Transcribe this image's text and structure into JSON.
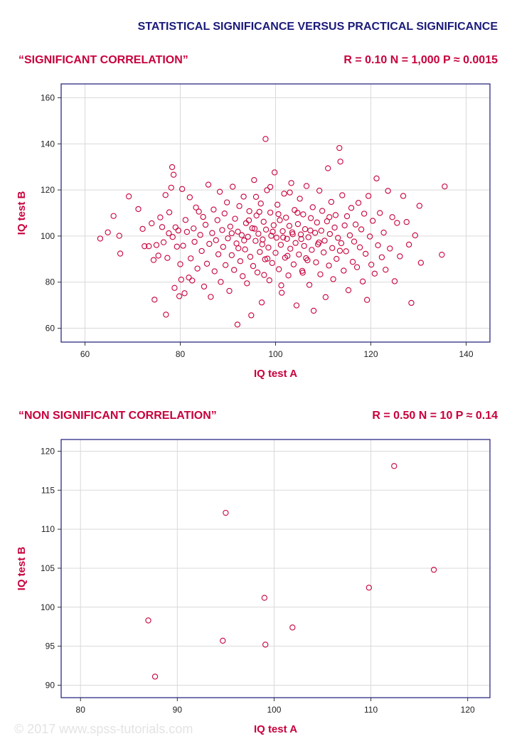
{
  "header": {
    "title": "STATISTICAL SIGNIFICANCE VERSUS PRACTICAL SIGNIFICANCE"
  },
  "watermark": "© 2017 www.spss-tutorials.com",
  "colors": {
    "title": "#1a1a7a",
    "accent": "#c8003c",
    "frame": "#1a1a7a",
    "grid": "#d9d9d9",
    "marker": "#c8003c"
  },
  "panels": [
    {
      "label": "“SIGNIFICANT CORRELATION”",
      "stats": "R = 0.10 N = 1,000 P ≈ 0.0015"
    },
    {
      "label": "“NON SIGNIFICANT CORRELATION”",
      "stats": "R = 0.50 N = 10 P ≈ 0.14"
    }
  ],
  "chart_data": [
    {
      "type": "scatter",
      "xlabel": "IQ test A",
      "ylabel": "IQ test B",
      "xlim": [
        55,
        145
      ],
      "ylim": [
        54,
        166
      ],
      "xticks": [
        60,
        80,
        100,
        120,
        140
      ],
      "yticks": [
        60,
        80,
        100,
        120,
        140,
        160
      ],
      "grid": true,
      "n": 1000,
      "points_note": "representative subset of the 1,000 plotted points",
      "points": [
        [
          63.2,
          98.9
        ],
        [
          64.8,
          101.6
        ],
        [
          66.0,
          108.7
        ],
        [
          67.2,
          100.1
        ],
        [
          67.4,
          92.4
        ],
        [
          69.2,
          117.2
        ],
        [
          71.2,
          111.7
        ],
        [
          72.1,
          103.1
        ],
        [
          72.5,
          95.6
        ],
        [
          73.4,
          95.6
        ],
        [
          74.0,
          105.5
        ],
        [
          74.4,
          89.6
        ],
        [
          74.6,
          72.4
        ],
        [
          75.0,
          96.1
        ],
        [
          75.4,
          91.5
        ],
        [
          75.8,
          108.1
        ],
        [
          76.2,
          103.9
        ],
        [
          76.5,
          97.3
        ],
        [
          76.9,
          117.8
        ],
        [
          77.0,
          65.9
        ],
        [
          77.3,
          90.5
        ],
        [
          77.6,
          101.2
        ],
        [
          77.7,
          110.3
        ],
        [
          78.1,
          121.0
        ],
        [
          78.3,
          129.9
        ],
        [
          78.4,
          99.6
        ],
        [
          78.6,
          126.6
        ],
        [
          78.8,
          77.5
        ],
        [
          79.0,
          103.8
        ],
        [
          79.3,
          95.4
        ],
        [
          79.6,
          102.4
        ],
        [
          79.8,
          73.9
        ],
        [
          80.0,
          87.8
        ],
        [
          80.2,
          81.1
        ],
        [
          80.4,
          120.4
        ],
        [
          80.6,
          95.8
        ],
        [
          80.9,
          75.2
        ],
        [
          81.1,
          107.0
        ],
        [
          81.4,
          101.8
        ],
        [
          81.8,
          82.0
        ],
        [
          82.0,
          116.8
        ],
        [
          82.2,
          90.3
        ],
        [
          82.5,
          80.7
        ],
        [
          82.8,
          103.3
        ],
        [
          83.0,
          97.5
        ],
        [
          83.3,
          112.4
        ],
        [
          83.6,
          85.9
        ],
        [
          83.9,
          110.6
        ],
        [
          84.2,
          100.5
        ],
        [
          84.5,
          93.5
        ],
        [
          84.8,
          108.3
        ],
        [
          85.0,
          78.1
        ],
        [
          85.3,
          104.9
        ],
        [
          85.6,
          88.0
        ],
        [
          85.9,
          122.3
        ],
        [
          86.1,
          96.6
        ],
        [
          86.4,
          73.6
        ],
        [
          86.7,
          101.3
        ],
        [
          87.0,
          111.5
        ],
        [
          87.2,
          84.7
        ],
        [
          87.5,
          98.2
        ],
        [
          87.8,
          106.9
        ],
        [
          88.0,
          92.1
        ],
        [
          88.3,
          119.2
        ],
        [
          88.5,
          80.1
        ],
        [
          88.8,
          102.6
        ],
        [
          89.0,
          95.3
        ],
        [
          89.3,
          109.8
        ],
        [
          89.5,
          87.4
        ],
        [
          89.8,
          114.6
        ],
        [
          90.0,
          99.0
        ],
        [
          90.3,
          76.2
        ],
        [
          90.5,
          104.1
        ],
        [
          90.8,
          91.7
        ],
        [
          91.0,
          121.4
        ],
        [
          91.3,
          85.3
        ],
        [
          91.5,
          107.5
        ],
        [
          91.8,
          96.8
        ],
        [
          92.0,
          61.6
        ],
        [
          92.1,
          101.9
        ],
        [
          92.4,
          113.0
        ],
        [
          92.6,
          89.1
        ],
        [
          92.9,
          100.4
        ],
        [
          93.1,
          82.6
        ],
        [
          93.3,
          117.1
        ],
        [
          93.6,
          94.2
        ],
        [
          93.8,
          105.6
        ],
        [
          94.0,
          79.5
        ],
        [
          94.2,
          99.7
        ],
        [
          94.5,
          110.8
        ],
        [
          94.7,
          91.0
        ],
        [
          94.9,
          65.6
        ],
        [
          95.1,
          103.4
        ],
        [
          95.3,
          87.0
        ],
        [
          95.5,
          124.3
        ],
        [
          95.8,
          97.9
        ],
        [
          96.0,
          108.9
        ],
        [
          96.2,
          84.2
        ],
        [
          96.4,
          101.0
        ],
        [
          96.7,
          93.1
        ],
        [
          96.9,
          114.1
        ],
        [
          97.1,
          71.2
        ],
        [
          97.3,
          98.5
        ],
        [
          97.5,
          106.2
        ],
        [
          97.8,
          89.9
        ],
        [
          97.9,
          142.1
        ],
        [
          98.0,
          102.8
        ],
        [
          98.2,
          119.9
        ],
        [
          98.5,
          95.0
        ],
        [
          98.7,
          80.8
        ],
        [
          98.9,
          110.2
        ],
        [
          99.1,
          100.1
        ],
        [
          99.3,
          88.3
        ],
        [
          99.6,
          104.7
        ],
        [
          99.8,
          127.6
        ],
        [
          100.0,
          92.7
        ],
        [
          100.2,
          99.3
        ],
        [
          100.4,
          113.6
        ],
        [
          100.7,
          85.6
        ],
        [
          100.9,
          106.9
        ],
        [
          101.1,
          96.2
        ],
        [
          101.3,
          75.4
        ],
        [
          101.5,
          102.1
        ],
        [
          101.8,
          118.4
        ],
        [
          102.0,
          90.6
        ],
        [
          102.2,
          108.0
        ],
        [
          102.4,
          98.8
        ],
        [
          102.7,
          82.9
        ],
        [
          102.9,
          104.4
        ],
        [
          103.1,
          94.5
        ],
        [
          103.3,
          123.0
        ],
        [
          103.5,
          101.6
        ],
        [
          103.8,
          87.7
        ],
        [
          104.0,
          111.3
        ],
        [
          104.2,
          97.0
        ],
        [
          104.4,
          69.9
        ],
        [
          104.7,
          105.2
        ],
        [
          104.9,
          92.0
        ],
        [
          105.1,
          116.2
        ],
        [
          105.3,
          100.7
        ],
        [
          105.6,
          84.9
        ],
        [
          105.8,
          109.4
        ],
        [
          106.0,
          95.7
        ],
        [
          106.2,
          103.0
        ],
        [
          106.5,
          121.7
        ],
        [
          106.7,
          89.5
        ],
        [
          106.9,
          99.5
        ],
        [
          107.1,
          78.8
        ],
        [
          107.4,
          107.8
        ],
        [
          107.6,
          94.0
        ],
        [
          107.8,
          112.5
        ],
        [
          108.0,
          67.6
        ],
        [
          108.3,
          101.4
        ],
        [
          108.5,
          88.6
        ],
        [
          108.7,
          105.9
        ],
        [
          108.9,
          96.4
        ],
        [
          109.2,
          119.7
        ],
        [
          109.4,
          83.4
        ],
        [
          109.6,
          102.3
        ],
        [
          109.8,
          110.9
        ],
        [
          110.1,
          92.9
        ],
        [
          110.3,
          98.0
        ],
        [
          110.5,
          73.5
        ],
        [
          110.8,
          106.4
        ],
        [
          111.0,
          129.4
        ],
        [
          111.2,
          87.2
        ],
        [
          111.4,
          100.9
        ],
        [
          111.7,
          114.8
        ],
        [
          111.9,
          94.8
        ],
        [
          112.1,
          81.3
        ],
        [
          112.4,
          103.7
        ],
        [
          112.6,
          109.1
        ],
        [
          112.8,
          90.1
        ],
        [
          113.1,
          99.2
        ],
        [
          113.4,
          138.2
        ],
        [
          113.6,
          132.3
        ],
        [
          113.8,
          96.9
        ],
        [
          114.0,
          117.7
        ],
        [
          114.3,
          85.0
        ],
        [
          114.5,
          104.6
        ],
        [
          114.8,
          93.4
        ],
        [
          115.0,
          108.6
        ],
        [
          115.3,
          76.5
        ],
        [
          115.6,
          100.3
        ],
        [
          115.9,
          112.2
        ],
        [
          116.2,
          88.8
        ],
        [
          116.5,
          97.6
        ],
        [
          116.8,
          105.0
        ],
        [
          117.1,
          86.5
        ],
        [
          117.4,
          114.4
        ],
        [
          117.7,
          95.1
        ],
        [
          118.0,
          102.9
        ],
        [
          118.3,
          80.3
        ],
        [
          118.6,
          109.7
        ],
        [
          118.9,
          92.3
        ],
        [
          119.2,
          72.3
        ],
        [
          119.5,
          117.4
        ],
        [
          119.8,
          99.8
        ],
        [
          120.1,
          87.6
        ],
        [
          120.4,
          106.6
        ],
        [
          120.8,
          83.7
        ],
        [
          121.2,
          125.0
        ],
        [
          121.5,
          96.0
        ],
        [
          121.9,
          110.0
        ],
        [
          122.3,
          90.8
        ],
        [
          122.7,
          101.5
        ],
        [
          123.1,
          85.4
        ],
        [
          123.6,
          119.6
        ],
        [
          124.0,
          94.6
        ],
        [
          124.5,
          108.2
        ],
        [
          125.0,
          80.4
        ],
        [
          125.5,
          105.7
        ],
        [
          126.1,
          91.2
        ],
        [
          126.8,
          117.4
        ],
        [
          127.5,
          106.1
        ],
        [
          128.0,
          96.3
        ],
        [
          128.5,
          71.0
        ],
        [
          129.3,
          100.3
        ],
        [
          130.2,
          113.1
        ],
        [
          130.5,
          88.4
        ],
        [
          134.9,
          91.9
        ],
        [
          135.5,
          121.5
        ],
        [
          90.8,
          101.2
        ],
        [
          93.4,
          98.1
        ],
        [
          95.6,
          103.2
        ],
        [
          97.2,
          96.4
        ],
        [
          99.4,
          101.9
        ],
        [
          101.6,
          99.4
        ],
        [
          103.6,
          100.8
        ],
        [
          105.4,
          98.7
        ],
        [
          107.3,
          102.4
        ],
        [
          109.1,
          97.2
        ],
        [
          96.6,
          110.5
        ],
        [
          98.3,
          90.2
        ],
        [
          100.6,
          109.5
        ],
        [
          102.5,
          91.4
        ],
        [
          104.6,
          110.1
        ],
        [
          106.4,
          90.4
        ],
        [
          94.4,
          106.8
        ],
        [
          92.2,
          94.7
        ],
        [
          111.3,
          108.2
        ],
        [
          113.5,
          93.6
        ],
        [
          98.9,
          121.3
        ],
        [
          101.2,
          78.6
        ],
        [
          103.0,
          118.9
        ],
        [
          97.6,
          83.1
        ],
        [
          105.7,
          84.1
        ],
        [
          95.9,
          117.0
        ]
      ]
    },
    {
      "type": "scatter",
      "xlabel": "IQ test A",
      "ylabel": "IQ test B",
      "xlim": [
        78,
        122.3
      ],
      "ylim": [
        88.4,
        121.5
      ],
      "xticks": [
        80,
        90,
        100,
        110,
        120
      ],
      "yticks": [
        90,
        95,
        100,
        105,
        110,
        115,
        120
      ],
      "grid": true,
      "n": 10,
      "points": [
        [
          87.0,
          98.3
        ],
        [
          87.7,
          91.1
        ],
        [
          94.7,
          95.7
        ],
        [
          95.0,
          112.1
        ],
        [
          99.0,
          101.2
        ],
        [
          99.1,
          95.2
        ],
        [
          101.9,
          97.4
        ],
        [
          109.8,
          102.5
        ],
        [
          112.4,
          118.1
        ],
        [
          116.5,
          104.8
        ]
      ]
    }
  ]
}
